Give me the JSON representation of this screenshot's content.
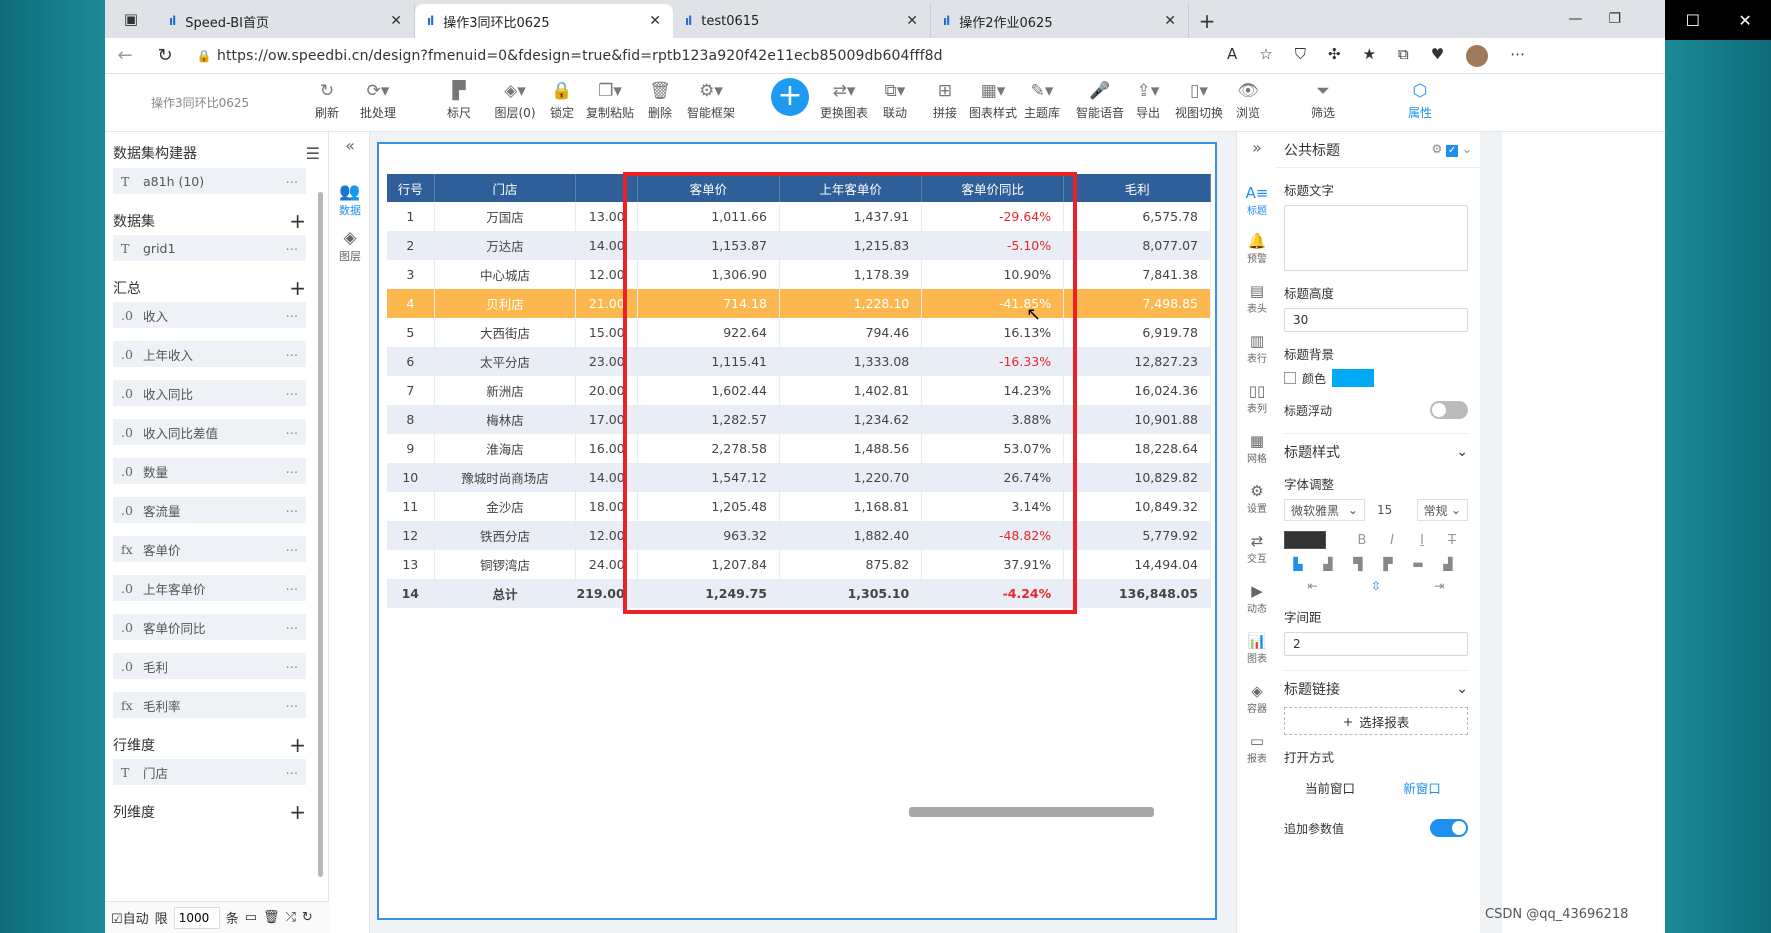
{
  "browser": {
    "tabs": [
      {
        "label": "Speed-BI首页",
        "logo": "ıl"
      },
      {
        "label": "操作3同环比0625",
        "logo": "ıl",
        "active": true
      },
      {
        "label": "test0615",
        "logo": "ıl"
      },
      {
        "label": "操作2作业0625",
        "logo": "ıl"
      }
    ],
    "url": "https://ow.speedbi.cn/design?fmenuid=0&fdesign=true&fid=rptb123a920f42e11ecb85009db604fff8d"
  },
  "toolbar": {
    "doc_title": "操作3同环比0625",
    "tools": [
      {
        "label": "刷新",
        "icon": "↻"
      },
      {
        "label": "批处理",
        "icon": "⟳▾"
      },
      {
        "label": "标尺",
        "icon": "▛"
      },
      {
        "label": "图层(0)",
        "icon": "◈▾"
      },
      {
        "label": "锁定",
        "icon": "🔒"
      },
      {
        "label": "复制粘贴",
        "icon": "❐▾"
      },
      {
        "label": "删除",
        "icon": "🗑"
      },
      {
        "label": "智能框架",
        "icon": "⚙▾"
      },
      {
        "label": "更换图表",
        "icon": "⇄▾"
      },
      {
        "label": "联动",
        "icon": "⧉▾"
      },
      {
        "label": "拼接",
        "icon": "⊞"
      },
      {
        "label": "图表样式",
        "icon": "▦▾"
      },
      {
        "label": "主题库",
        "icon": "✎▾"
      },
      {
        "label": "智能语音",
        "icon": "🎤"
      },
      {
        "label": "导出",
        "icon": "⇪▾"
      },
      {
        "label": "视图切换",
        "icon": "▯▾"
      },
      {
        "label": "浏览",
        "icon": "👁"
      },
      {
        "label": "筛选",
        "icon": "⏷"
      },
      {
        "label": "属性",
        "icon": "⬡"
      }
    ]
  },
  "left_panel": {
    "title": "数据集构建器",
    "top_field": {
      "type": "T",
      "label": "a81h (10)"
    },
    "dataset_section": "数据集",
    "dataset_fields": [
      {
        "type": "T",
        "label": "grid1"
      }
    ],
    "summary_section": "汇总",
    "summary_fields": [
      {
        "type": ".0",
        "label": "收入"
      },
      {
        "type": ".0",
        "label": "上年收入"
      },
      {
        "type": ".0",
        "label": "收入同比"
      },
      {
        "type": ".0",
        "label": "收入同比差值"
      },
      {
        "type": ".0",
        "label": "数量"
      },
      {
        "type": ".0",
        "label": "客流量"
      },
      {
        "type": "fx",
        "label": "客单价"
      },
      {
        "type": ".0",
        "label": "上年客单价"
      },
      {
        "type": ".0",
        "label": "客单价同比"
      },
      {
        "type": ".0",
        "label": "毛利"
      },
      {
        "type": "fx",
        "label": "毛利率"
      }
    ],
    "row_dim_section": "行维度",
    "row_dim_fields": [
      {
        "type": "T",
        "label": "门店"
      }
    ],
    "col_dim_section": "列维度",
    "footer": {
      "auto": "自动",
      "limit": "限",
      "limit_value": "1000",
      "unit": "条"
    }
  },
  "mid_strip": {
    "items": [
      {
        "label": "数据",
        "icon": "👥"
      },
      {
        "label": "图层",
        "icon": "◈"
      }
    ]
  },
  "table": {
    "headers": [
      "行号",
      "门店",
      "",
      "客单价",
      "上年客单价",
      "客单价同比",
      "毛利"
    ],
    "rows": [
      [
        "1",
        "万国店",
        "13.00",
        "1,011.66",
        "1,437.91",
        "-29.64%",
        "6,575.78"
      ],
      [
        "2",
        "万达店",
        "14.00",
        "1,153.87",
        "1,215.83",
        "-5.10%",
        "8,077.07"
      ],
      [
        "3",
        "中心城店",
        "12.00",
        "1,306.90",
        "1,178.39",
        "10.90%",
        "7,841.38"
      ],
      [
        "4",
        "贝利店",
        "21.00",
        "714.18",
        "1,228.10",
        "-41.85%",
        "7,498.85"
      ],
      [
        "5",
        "大西街店",
        "15.00",
        "922.64",
        "794.46",
        "16.13%",
        "6,919.78"
      ],
      [
        "6",
        "太平分店",
        "23.00",
        "1,115.41",
        "1,333.08",
        "-16.33%",
        "12,827.23"
      ],
      [
        "7",
        "新洲店",
        "20.00",
        "1,602.44",
        "1,402.81",
        "14.23%",
        "16,024.36"
      ],
      [
        "8",
        "梅林店",
        "17.00",
        "1,282.57",
        "1,234.62",
        "3.88%",
        "10,901.88"
      ],
      [
        "9",
        "淮海店",
        "16.00",
        "2,278.58",
        "1,488.56",
        "53.07%",
        "18,228.64"
      ],
      [
        "10",
        "豫城时尚商场店",
        "14.00",
        "1,547.12",
        "1,220.70",
        "26.74%",
        "10,829.82"
      ],
      [
        "11",
        "金沙店",
        "18.00",
        "1,205.48",
        "1,168.81",
        "3.14%",
        "10,849.32"
      ],
      [
        "12",
        "铁西分店",
        "12.00",
        "963.32",
        "1,882.40",
        "-48.82%",
        "5,779.92"
      ],
      [
        "13",
        "铜锣湾店",
        "24.00",
        "1,207.84",
        "875.82",
        "37.91%",
        "14,494.04"
      ],
      [
        "14",
        "总计",
        "219.00",
        "1,249.75",
        "1,305.10",
        "-4.24%",
        "136,848.05"
      ]
    ]
  },
  "icon_strip": {
    "items": [
      {
        "label": "标题",
        "icon": "A≡"
      },
      {
        "label": "预警",
        "icon": "🔔"
      },
      {
        "label": "表头",
        "icon": "▤"
      },
      {
        "label": "表行",
        "icon": "▥"
      },
      {
        "label": "表列",
        "icon": "▯▯"
      },
      {
        "label": "网格",
        "icon": "▦"
      },
      {
        "label": "设置",
        "icon": "⚙"
      },
      {
        "label": "交互",
        "icon": "⇄"
      },
      {
        "label": "动态",
        "icon": "▶"
      },
      {
        "label": "图表",
        "icon": "📊"
      },
      {
        "label": "容器",
        "icon": "◈"
      },
      {
        "label": "报表",
        "icon": "▭"
      }
    ]
  },
  "right_panel": {
    "title": "公共标题",
    "title_text_label": "标题文字",
    "title_height_label": "标题高度",
    "title_height_value": "30",
    "title_bg_label": "标题背景",
    "color_label": "颜色",
    "title_float_label": "标题浮动",
    "title_style_label": "标题样式",
    "font_adjust_label": "字体调整",
    "font_name": "微软雅黑",
    "font_size": "15",
    "font_weight": "常规",
    "letter_spacing_label": "字间距",
    "letter_spacing_value": "2",
    "title_link_label": "标题链接",
    "choose_report": "选择报表",
    "open_mode_label": "打开方式",
    "open_current": "当前窗口",
    "open_new": "新窗口",
    "append_params_label": "追加参数值",
    "colors": {
      "accent": "#1e8ff0",
      "bg_swatch": "#00aaf5"
    }
  },
  "watermark": "CSDN @qq_43696218"
}
